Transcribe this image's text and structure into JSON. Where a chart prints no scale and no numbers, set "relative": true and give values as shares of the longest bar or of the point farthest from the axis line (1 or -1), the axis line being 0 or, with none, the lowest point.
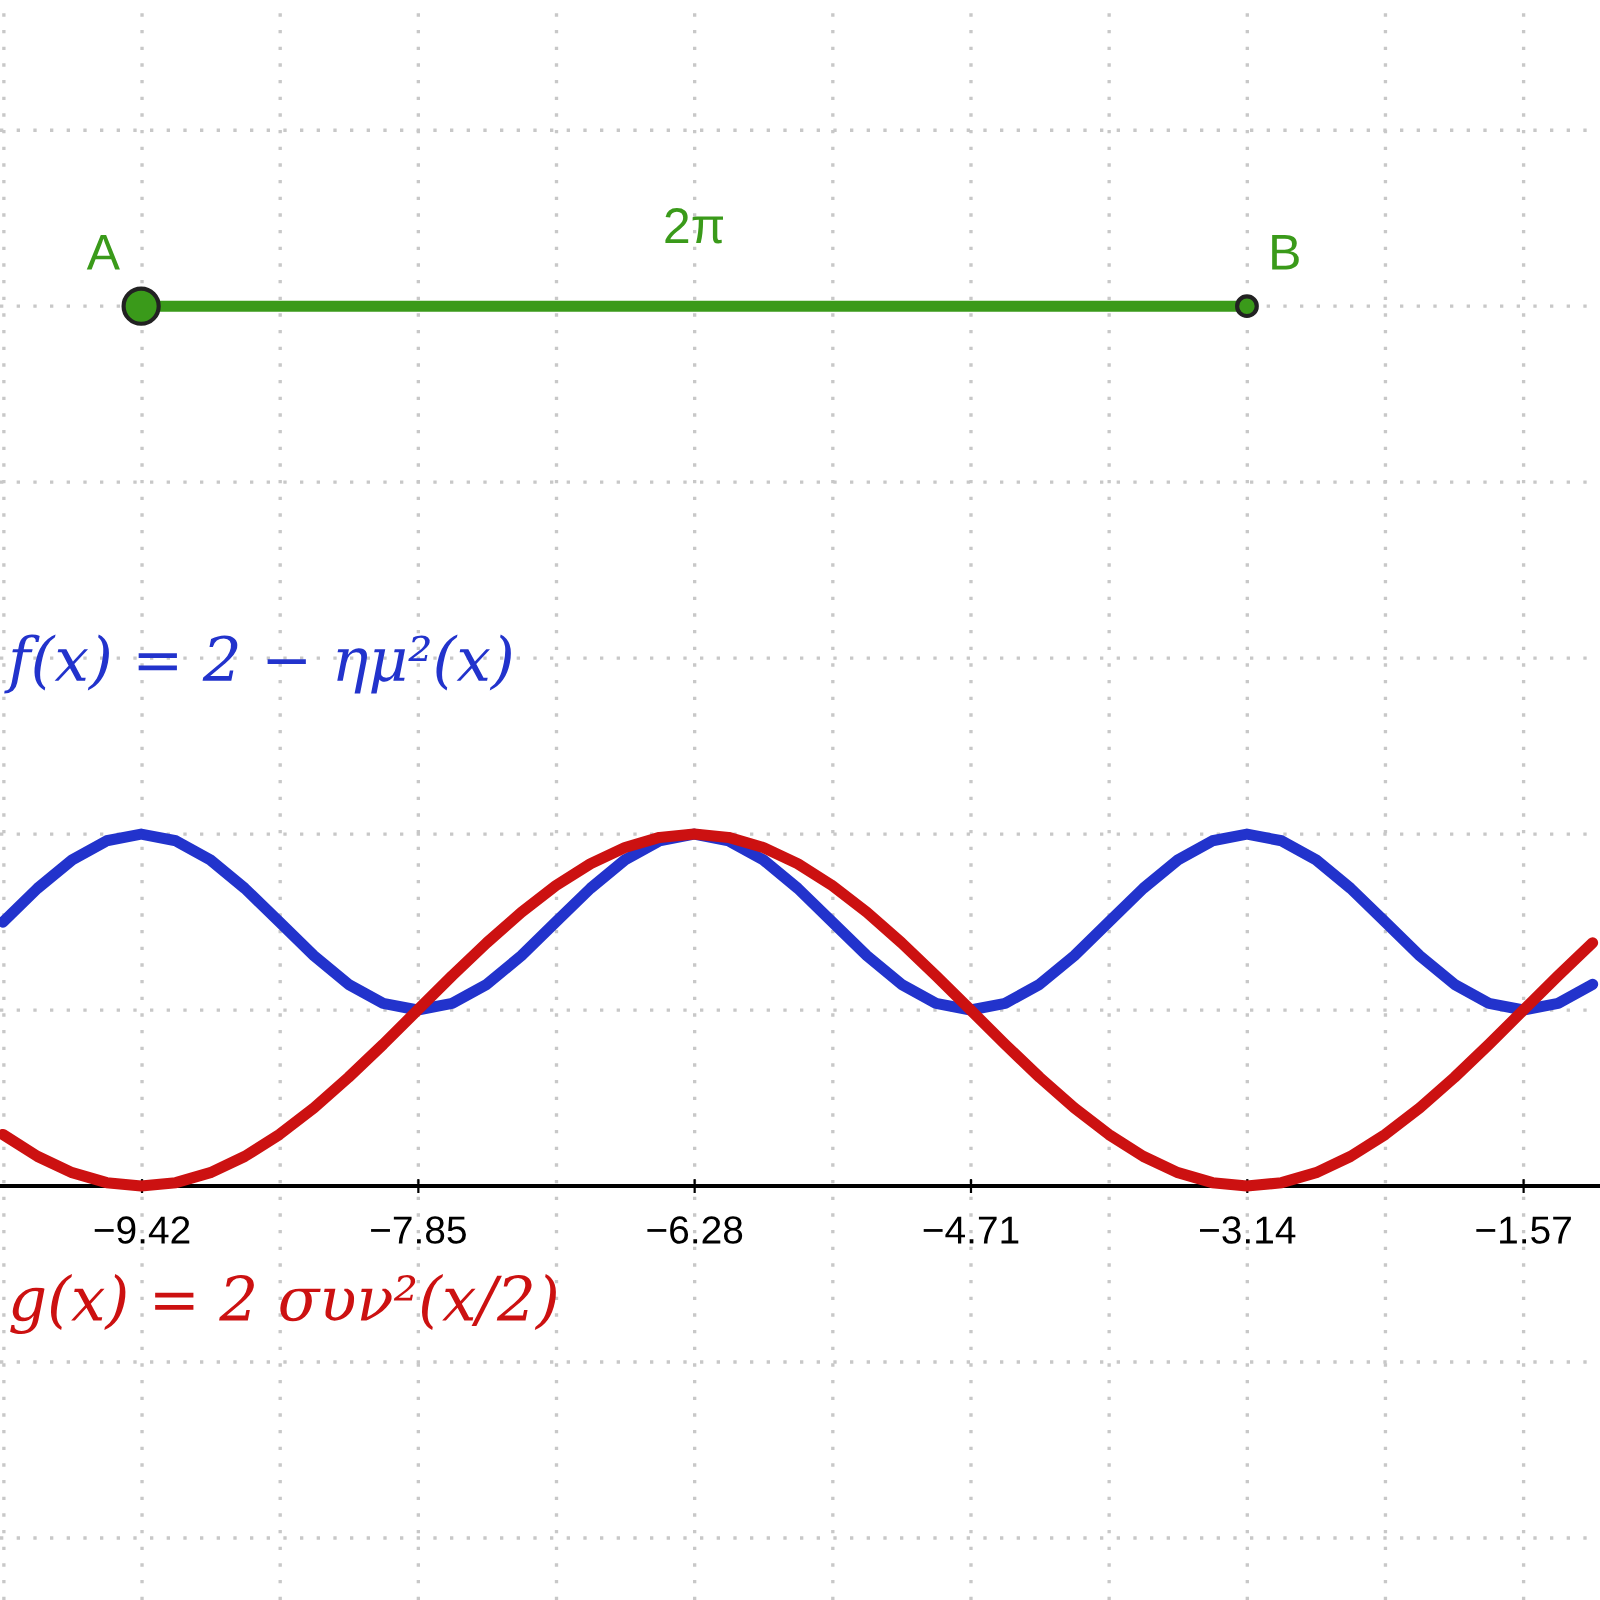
{
  "chart_data": {
    "type": "line",
    "relative": true,
    "x": [
      -10.21,
      -10.014,
      -9.817,
      -9.621,
      -9.425,
      -9.228,
      -9.032,
      -8.836,
      -8.639,
      -8.443,
      -8.247,
      -8.05,
      -7.854,
      -7.658,
      -7.461,
      -7.265,
      -7.069,
      -6.872,
      -6.676,
      -6.48,
      -6.283,
      -6.087,
      -5.89,
      -5.694,
      -5.498,
      -5.301,
      -5.105,
      -4.909,
      -4.712,
      -4.516,
      -4.32,
      -4.123,
      -3.927,
      -3.731,
      -3.534,
      -3.338,
      -3.142,
      -2.945,
      -2.749,
      -2.553,
      -2.356,
      -2.16,
      -1.963,
      -1.767,
      -1.571,
      -1.374,
      -1.178
    ],
    "series": [
      {
        "name": "f(x) = 2 − ημ²(x)",
        "color": "#2233cc",
        "values": [
          0.3,
          0.3383,
          0.3707,
          0.3924,
          0.4,
          0.3924,
          0.3707,
          0.3383,
          0.3,
          0.2617,
          0.2293,
          0.2076,
          0.2,
          0.2076,
          0.2293,
          0.2617,
          0.3,
          0.3383,
          0.3707,
          0.3924,
          0.4,
          0.3924,
          0.3707,
          0.3383,
          0.3,
          0.2617,
          0.2293,
          0.2076,
          0.2,
          0.2076,
          0.2293,
          0.2617,
          0.3,
          0.3383,
          0.3707,
          0.3924,
          0.4,
          0.3924,
          0.3707,
          0.3383,
          0.3,
          0.2617,
          0.2293,
          0.2076,
          0.2,
          0.2076,
          0.2293
        ]
      },
      {
        "name": "g(x) = 2 συν²(x/2)",
        "color": "#cc1111",
        "values": [
          0.0586,
          0.0337,
          0.0152,
          0.0038,
          0,
          0.0038,
          0.0152,
          0.0337,
          0.0586,
          0.0889,
          0.1235,
          0.161,
          0.2,
          0.239,
          0.2765,
          0.3111,
          0.3414,
          0.3663,
          0.3848,
          0.3962,
          0.4,
          0.3962,
          0.3848,
          0.3663,
          0.3414,
          0.3111,
          0.2765,
          0.239,
          0.2,
          0.161,
          0.1235,
          0.0889,
          0.0586,
          0.0337,
          0.0152,
          0.0038,
          0,
          0.0038,
          0.0152,
          0.0337,
          0.0586,
          0.0889,
          0.1235,
          0.161,
          0.2,
          0.239,
          0.2765
        ]
      },
      {
        "color": "#3a9a1a",
        "x": [
          -9.425,
          -3.142
        ],
        "values": [
          1,
          1
        ],
        "marker": "circle"
      }
    ],
    "annotations": [
      "A",
      "B",
      "2π"
    ],
    "xlim": [
      -10.227,
      -1.136
    ],
    "xticks": [
      {
        "value": -9.42,
        "label": "−9.42"
      },
      {
        "value": -7.85,
        "label": "−7.85"
      },
      {
        "value": -6.28,
        "label": "−6.28"
      },
      {
        "value": -4.71,
        "label": "−4.71"
      },
      {
        "value": -3.14,
        "label": "−3.14"
      },
      {
        "value": -1.57,
        "label": "−1.57"
      }
    ],
    "grid": true,
    "line_style": "solid"
  }
}
